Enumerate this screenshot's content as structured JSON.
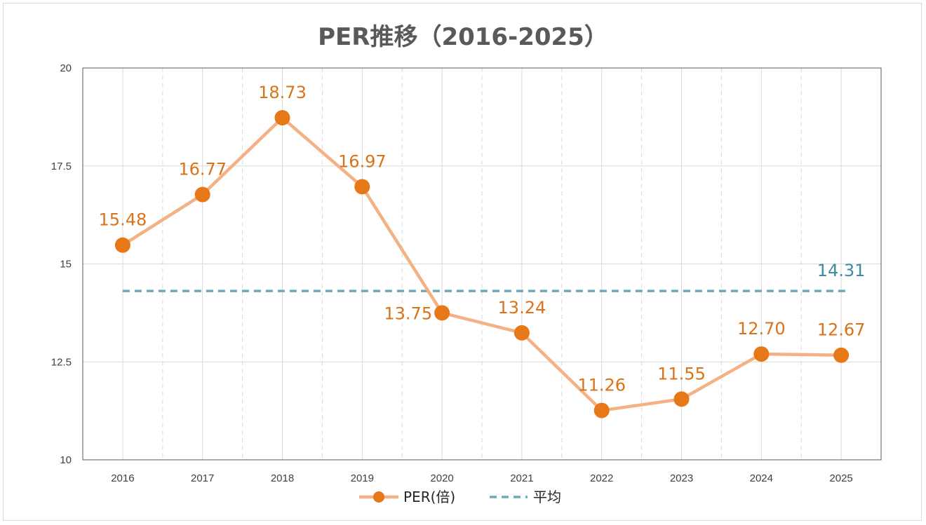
{
  "chart_data": {
    "type": "line",
    "title": "PER推移（2016-2025）",
    "categories": [
      "2016",
      "2017",
      "2018",
      "2019",
      "2020",
      "2021",
      "2022",
      "2023",
      "2024",
      "2025"
    ],
    "ylim": [
      10,
      20
    ],
    "yticks": [
      10,
      12.5,
      15,
      17.5,
      20
    ],
    "ytick_labels": [
      "10",
      "12.5",
      "15",
      "17.5",
      "20"
    ],
    "grid": true,
    "series": [
      {
        "name": "PER(倍)",
        "values": [
          15.48,
          16.77,
          18.73,
          16.97,
          13.75,
          13.24,
          11.26,
          11.55,
          12.7,
          12.67
        ],
        "labels": [
          "15.48",
          "16.77",
          "18.73",
          "16.97",
          "13.75",
          "13.24",
          "11.26",
          "11.55",
          "12.70",
          "12.67"
        ],
        "line_color": "#F4B183",
        "marker_color": "#E67817",
        "label_color": "#D9731A"
      },
      {
        "name": "平均",
        "value": 14.31,
        "label": "14.31",
        "line_color": "#6FA8B8",
        "label_color": "#3D8CA6",
        "style": "dashed"
      }
    ],
    "legend": "bottom"
  }
}
